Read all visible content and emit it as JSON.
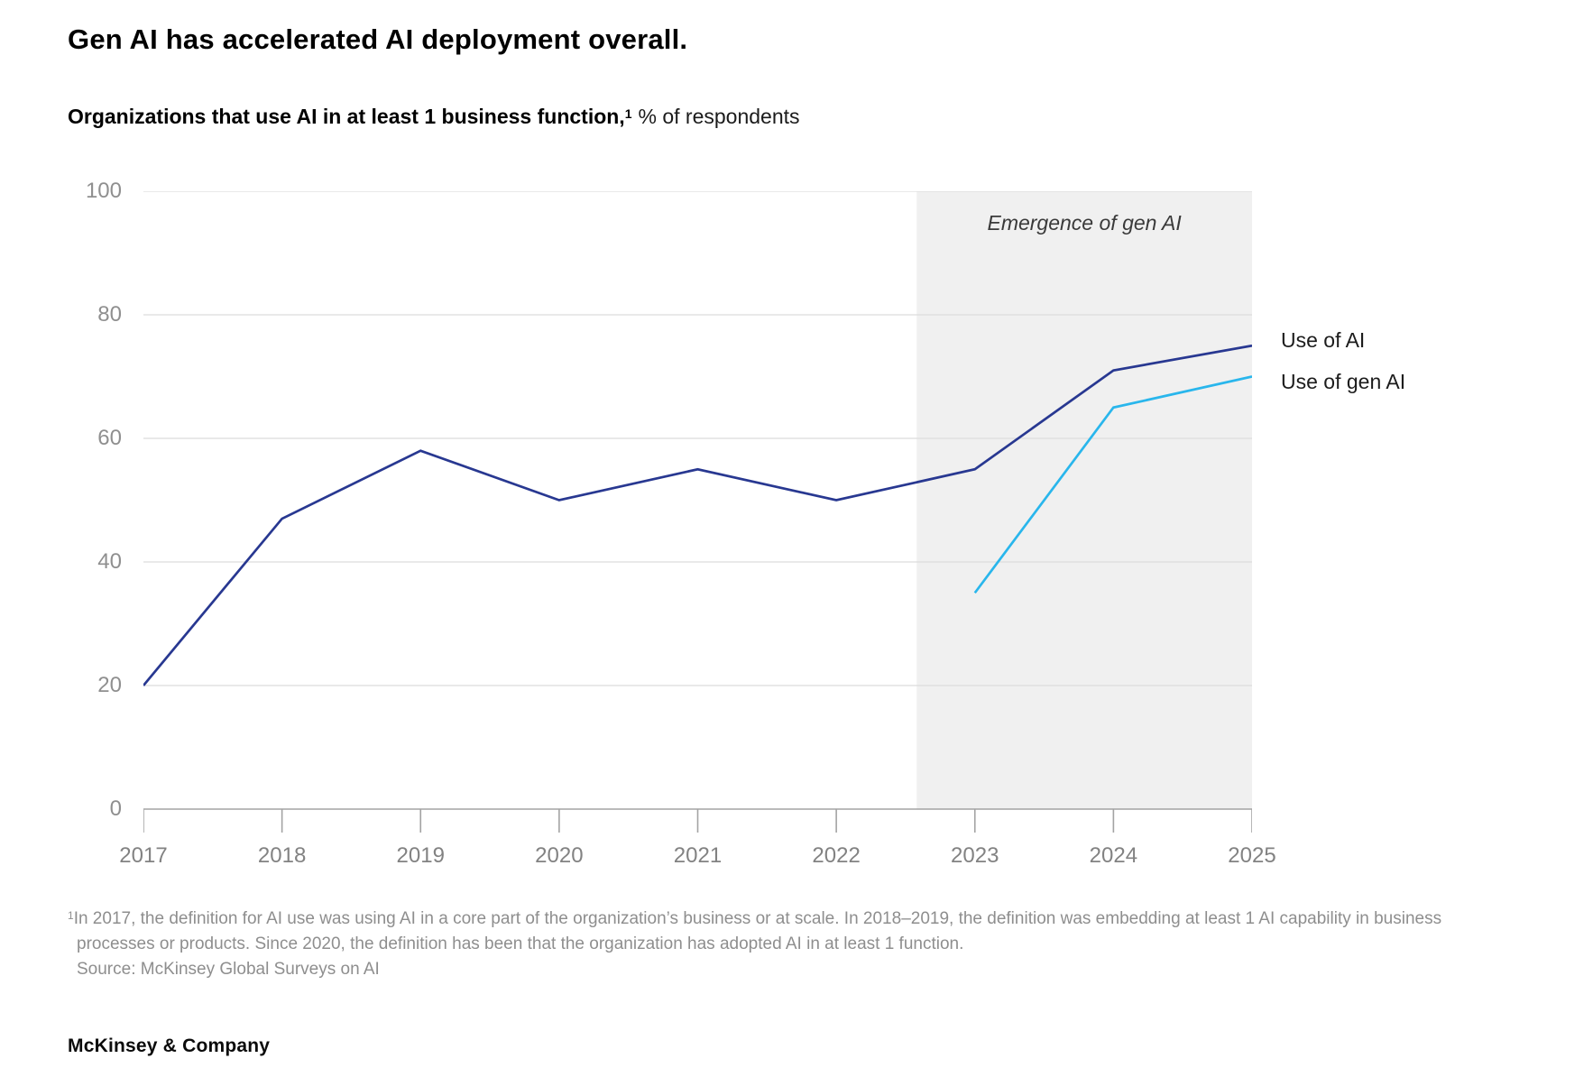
{
  "header": {
    "title": "Gen AI has accelerated AI deployment overall.",
    "subtitle": {
      "bold": "Organizations that use AI in at least 1 business function,",
      "superscript": "1",
      "regular": "% of respondents"
    }
  },
  "chart_data": {
    "type": "line",
    "title": "Organizations that use AI in at least 1 business function, % of respondents",
    "x": [
      2017,
      2018,
      2019,
      2020,
      2021,
      2022,
      2023,
      2024,
      2025
    ],
    "series": [
      {
        "name": "Use of AI",
        "color": "#283891",
        "x": [
          2017,
          2018,
          2019,
          2020,
          2021,
          2022,
          2023,
          2024,
          2025
        ],
        "values": [
          20,
          47,
          58,
          50,
          55,
          50,
          55,
          71,
          75
        ]
      },
      {
        "name": "Use of gen AI",
        "color": "#29b6ec",
        "x": [
          2023,
          2024,
          2025
        ],
        "values": [
          35,
          65,
          70
        ]
      }
    ],
    "ylim": [
      0,
      100
    ],
    "yticks": [
      0,
      20,
      40,
      60,
      80,
      100
    ],
    "grid": "horizontal-only",
    "grid_color": "#dcdcdc",
    "axis_color": "#a3a3a3",
    "annotation_band": {
      "label": "Emergence of gen AI",
      "x_start": 2022.58,
      "x_end": 2025,
      "color": "#f0f0f0"
    },
    "legend": {
      "position": "right",
      "entries": [
        "Use of AI",
        "Use of gen AI"
      ]
    }
  },
  "footnote": {
    "superscript": "1",
    "note": "In 2017, the definition for AI use was using AI in a core part of the organization’s business or at scale. In 2018–2019, the definition was embedding at least 1 AI capability in business processes or products. Since 2020, the definition has been that the organization has adopted AI in at least 1 function.",
    "source": "Source: McKinsey Global Surveys on AI"
  },
  "branding": {
    "wordmark": "McKinsey & Company"
  }
}
